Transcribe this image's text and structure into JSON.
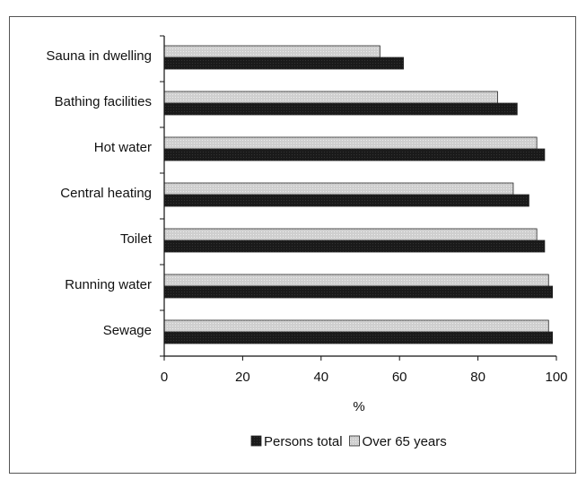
{
  "chart_data": {
    "type": "bar",
    "orientation": "horizontal",
    "categories": [
      "Sauna in dwelling",
      "Bathing facilities",
      "Hot water",
      "Central heating",
      "Toilet",
      "Running water",
      "Sewage"
    ],
    "series": [
      {
        "name": "Over 65 years",
        "color": "#cfcfcf",
        "values": [
          55,
          85,
          95,
          89,
          95,
          98,
          98
        ]
      },
      {
        "name": "Persons total",
        "color": "#1a1a1a",
        "values": [
          61,
          90,
          97,
          93,
          97,
          99,
          99
        ]
      }
    ],
    "xlabel": "%",
    "xlim": [
      0,
      100
    ],
    "xticks": [
      "0",
      "20",
      "40",
      "60",
      "80",
      "100"
    ],
    "grid": false,
    "legend": {
      "placement": "bottom",
      "items": [
        {
          "name": "Persons total",
          "color": "#1a1a1a"
        },
        {
          "name": "Over 65 years",
          "color": "#cfcfcf"
        }
      ]
    }
  }
}
